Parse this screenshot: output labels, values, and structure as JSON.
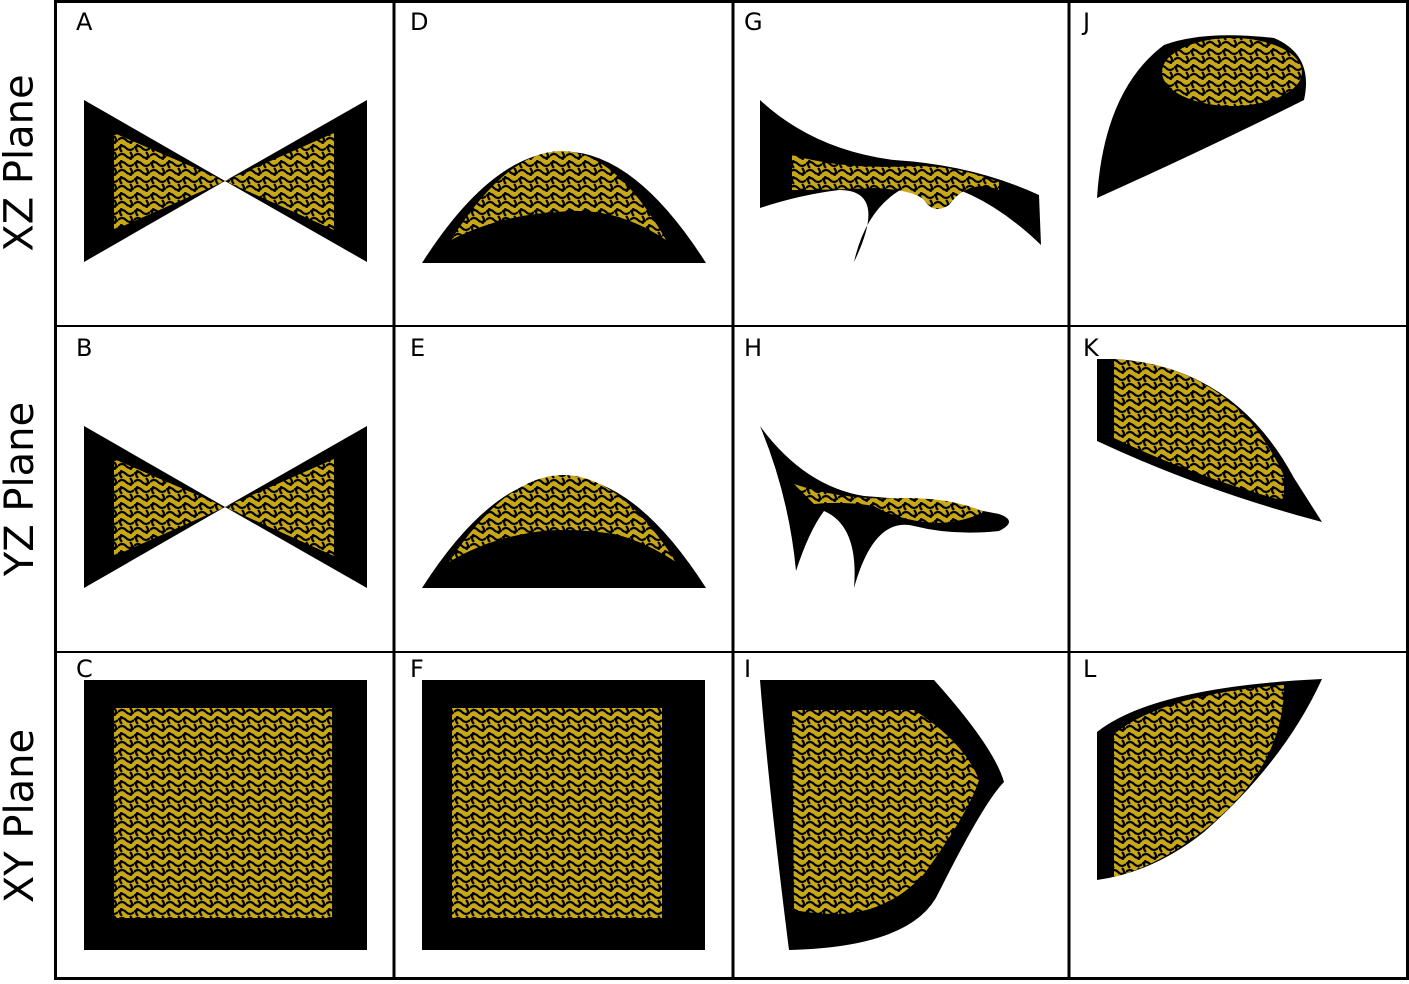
{
  "row_labels": [
    "XZ Plane",
    "YZ Plane",
    "XY Plane"
  ],
  "panels": [
    {
      "letter": "A",
      "shape": "bowtie"
    },
    {
      "letter": "B",
      "shape": "bowtie"
    },
    {
      "letter": "C",
      "shape": "square"
    },
    {
      "letter": "D",
      "shape": "dome"
    },
    {
      "letter": "E",
      "shape": "dome"
    },
    {
      "letter": "F",
      "shape": "square"
    },
    {
      "letter": "G",
      "shape": "saddle-xz"
    },
    {
      "letter": "H",
      "shape": "saddle-yz"
    },
    {
      "letter": "I",
      "shape": "saddle-xy"
    },
    {
      "letter": "J",
      "shape": "ellipsoid-xz"
    },
    {
      "letter": "K",
      "shape": "ellipsoid-yz"
    },
    {
      "letter": "L",
      "shape": "ellipsoid-xy"
    }
  ],
  "colors": {
    "solid": "#000000",
    "lattice": "#c8a817",
    "grid_line": "#000000",
    "background": "#ffffff"
  }
}
